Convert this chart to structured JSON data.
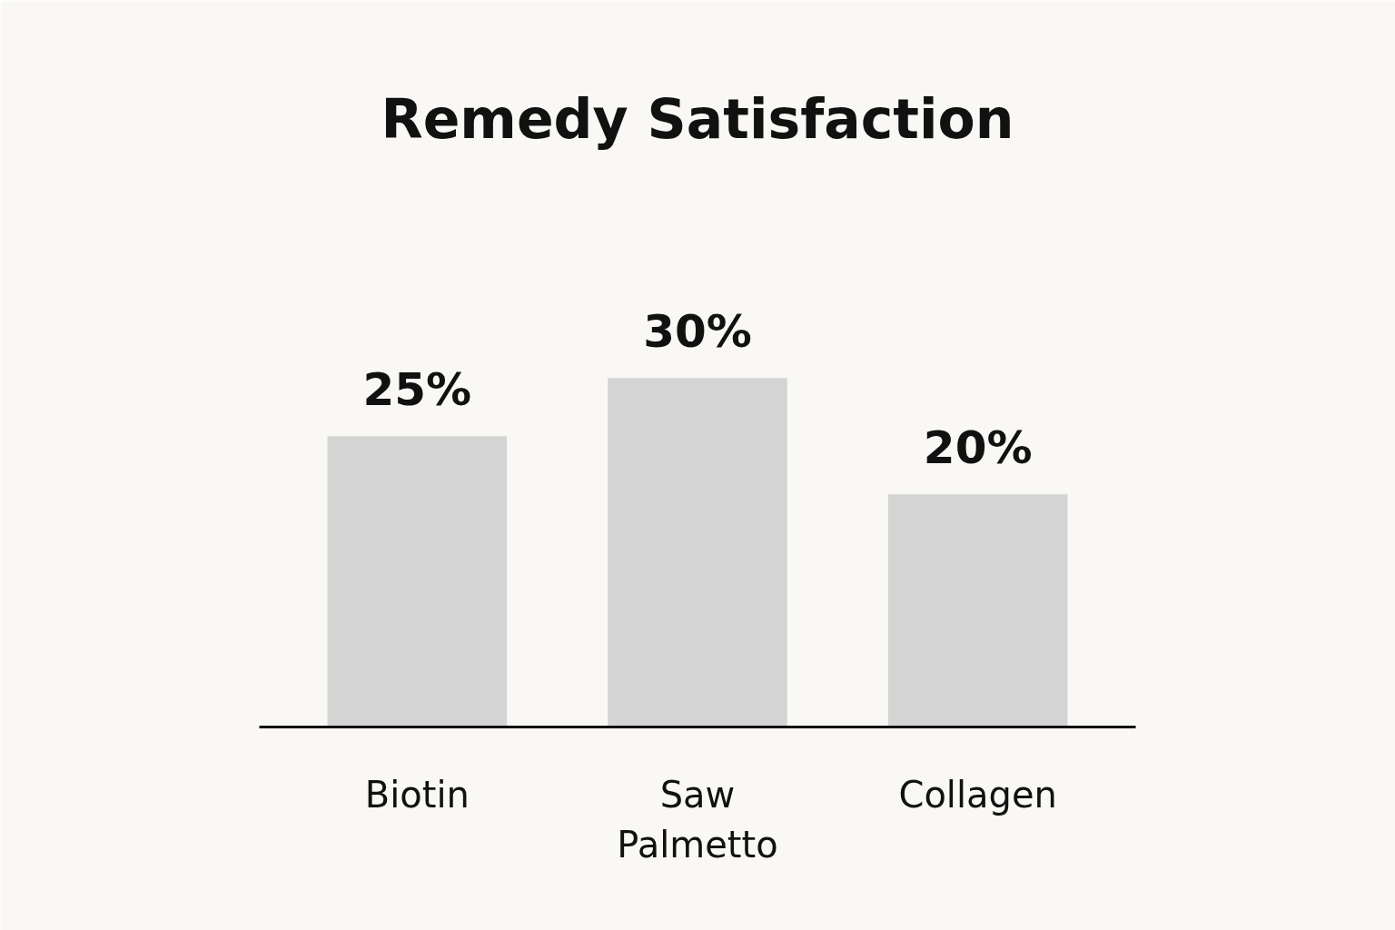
{
  "chart_data": {
    "type": "bar",
    "title": "Remedy Satisfaction",
    "categories": [
      "Biotin",
      "Saw Palmetto",
      "Collagen"
    ],
    "values": [
      25,
      30,
      20
    ],
    "color": "#d4d4d4",
    "value_labels": [
      "25%",
      "30%",
      "20%"
    ]
  }
}
